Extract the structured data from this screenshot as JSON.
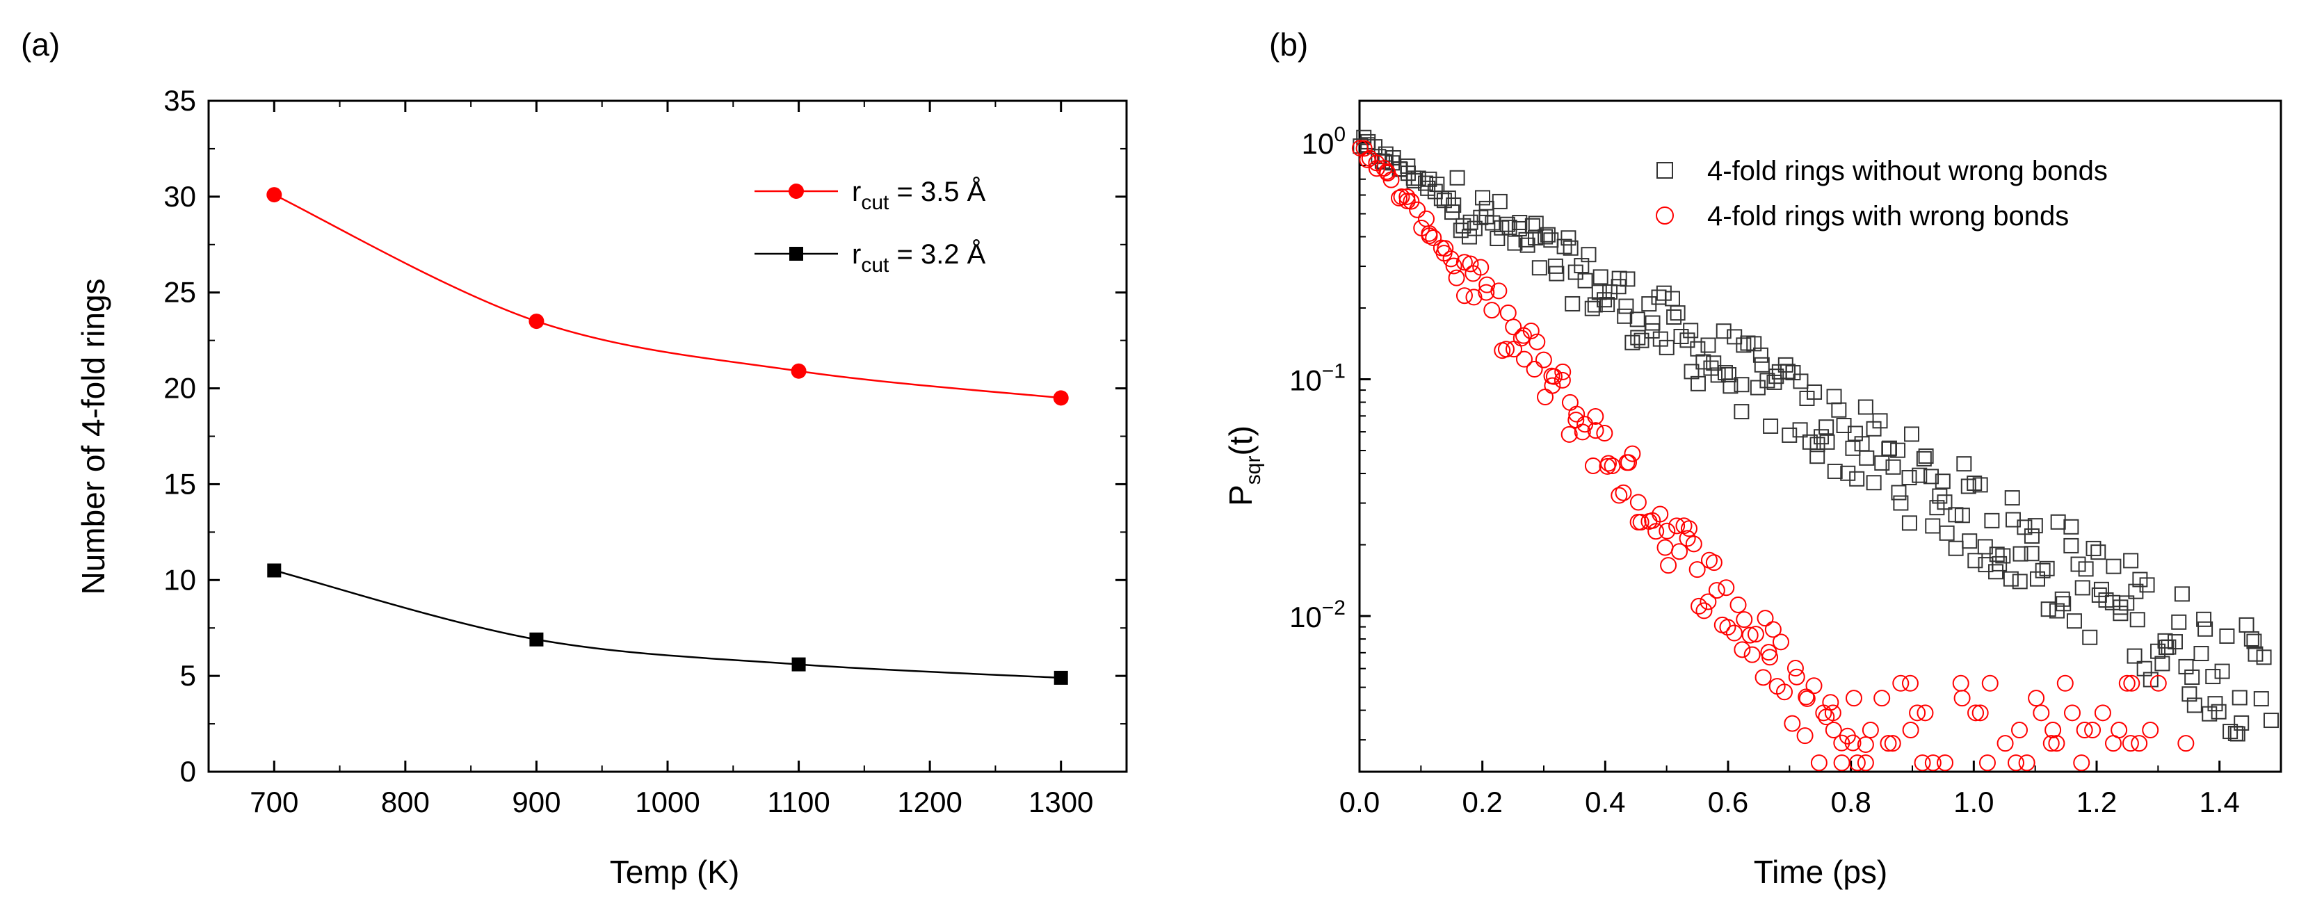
{
  "panels": {
    "a": "(a)",
    "b": "(b)"
  },
  "chart_data": [
    {
      "type": "line",
      "title": "",
      "xlabel": "Temp (K)",
      "ylabel": "Number of 4-fold rings",
      "xlim": [
        650,
        1350
      ],
      "ylim": [
        0,
        35
      ],
      "xticks": [
        700,
        800,
        900,
        1000,
        1100,
        1200,
        1300
      ],
      "yticks": [
        0,
        5,
        10,
        15,
        20,
        25,
        30,
        35
      ],
      "legend_position": "top-right",
      "series": [
        {
          "name": "r",
          "sub": "cut",
          "suffix": " = 3.5 Å",
          "color": "#ff0000",
          "marker": "circle",
          "x": [
            700,
            900,
            1100,
            1300
          ],
          "values": [
            30.1,
            23.5,
            20.9,
            19.5
          ]
        },
        {
          "name": "r",
          "sub": "cut",
          "suffix": " = 3.2 Å",
          "color": "#000000",
          "marker": "square",
          "x": [
            700,
            900,
            1100,
            1300
          ],
          "values": [
            10.5,
            6.9,
            5.6,
            4.9
          ]
        }
      ]
    },
    {
      "type": "scatter",
      "title": "",
      "xlabel": "Time (ps)",
      "ylabel": "P",
      "ylabel_sub": "sqr",
      "ylabel_suffix": "(t)",
      "yscale": "log",
      "xlim": [
        0,
        1.5
      ],
      "ylim": [
        0.0022,
        1.5
      ],
      "xticks": [
        "0.0",
        "0.2",
        "0.4",
        "0.6",
        "0.8",
        "1.0",
        "1.2",
        "1.4"
      ],
      "yticks": [
        {
          "base": "10",
          "exp": "0",
          "value": 1
        },
        {
          "base": "10",
          "exp": "−1",
          "value": 0.1
        },
        {
          "base": "10",
          "exp": "−2",
          "value": 0.01
        }
      ],
      "legend_position": "top-right",
      "series": [
        {
          "name": "4-fold rings without wrong bonds",
          "color": "#333333",
          "marker": "open-square",
          "decay_tau_ps": 0.275,
          "noise_floor": 0.0024,
          "points": 260,
          "t_max": 1.48
        },
        {
          "name": "4-fold rings with wrong bonds",
          "color": "#ff0000",
          "marker": "open-circle",
          "decay_tau_ps": 0.133,
          "noise_floor": 0.0028,
          "points": 220,
          "t_max": 1.35
        }
      ]
    }
  ]
}
